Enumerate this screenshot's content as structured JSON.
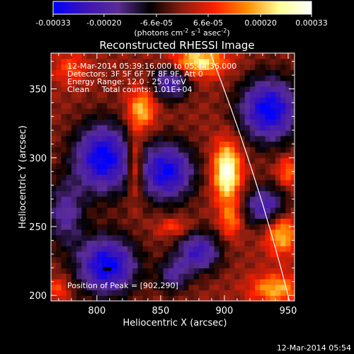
{
  "colorbar": {
    "tick_labels": [
      "-0.00033",
      "-0.00020",
      "-6.6e-05",
      "6.6e-05",
      "0.00020",
      "0.00033"
    ],
    "tick_values": [
      -0.00033,
      -0.0002,
      -6.6e-05,
      6.6e-05,
      0.0002,
      0.00033
    ],
    "range": [
      -0.00033,
      0.00033
    ],
    "units_main": "(photons cm",
    "units_exp1": "-2",
    "units_mid": " s",
    "units_exp2": "-1",
    "units_mid2": " asec",
    "units_exp3": "-2",
    "units_end": ")",
    "colormap": [
      "#0000ff",
      "#3c14b4",
      "#5a2d96",
      "#000000",
      "#8c1e10",
      "#ff1e00",
      "#ff8c00",
      "#ffff96",
      "#ffffff"
    ]
  },
  "chart_data": {
    "type": "heatmap",
    "title": "Reconstructed RHESSI Image",
    "xlabel": "Heliocentric X (arcsec)",
    "ylabel": "Heliocentric Y (arcsec)",
    "xlim": [
      764,
      955
    ],
    "ylim": [
      196,
      376
    ],
    "xticks": [
      800,
      850,
      900,
      950
    ],
    "yticks": [
      200,
      250,
      300,
      350
    ],
    "info_lines": [
      "12-Mar-2014 05:39:16.000 to 05:44:36.000",
      "Detectors: 3F 5F 6F 7F 8F 9F, Att 0",
      "Energy Range: 12.0 - 25.0 keV",
      "Clean     Total counts: 1.01E+04"
    ],
    "peak_label": "Position of Peak = [902,290]",
    "peak_position": [
      902,
      290
    ],
    "negative_blobs": [
      {
        "x": 805,
        "y": 300,
        "rx": 22,
        "ry": 24,
        "strength": 1.0
      },
      {
        "x": 808,
        "y": 222,
        "rx": 22,
        "ry": 20,
        "strength": 1.0
      },
      {
        "x": 855,
        "y": 290,
        "rx": 20,
        "ry": 20,
        "strength": 0.95
      },
      {
        "x": 858,
        "y": 355,
        "rx": 14,
        "ry": 12,
        "strength": 0.7
      },
      {
        "x": 935,
        "y": 335,
        "rx": 22,
        "ry": 22,
        "strength": 1.0
      },
      {
        "x": 932,
        "y": 265,
        "rx": 16,
        "ry": 14,
        "strength": 0.7
      },
      {
        "x": 880,
        "y": 232,
        "rx": 16,
        "ry": 14,
        "strength": 0.75
      },
      {
        "x": 860,
        "y": 215,
        "rx": 12,
        "ry": 12,
        "strength": 0.5
      },
      {
        "x": 775,
        "y": 260,
        "rx": 14,
        "ry": 22,
        "strength": 0.55
      }
    ],
    "positive_blobs": [
      {
        "x": 902,
        "y": 290,
        "rx": 10,
        "ry": 20,
        "strength": 1.0
      },
      {
        "x": 880,
        "y": 370,
        "rx": 20,
        "ry": 10,
        "strength": 0.75
      },
      {
        "x": 835,
        "y": 335,
        "rx": 10,
        "ry": 14,
        "strength": 0.65
      },
      {
        "x": 830,
        "y": 295,
        "rx": 6,
        "ry": 22,
        "strength": 0.6
      },
      {
        "x": 945,
        "y": 245,
        "rx": 12,
        "ry": 14,
        "strength": 0.65
      },
      {
        "x": 940,
        "y": 205,
        "rx": 18,
        "ry": 10,
        "strength": 0.6
      },
      {
        "x": 905,
        "y": 255,
        "rx": 8,
        "ry": 12,
        "strength": 0.45
      },
      {
        "x": 950,
        "y": 290,
        "rx": 8,
        "ry": 10,
        "strength": 0.45
      },
      {
        "x": 780,
        "y": 365,
        "rx": 12,
        "ry": 10,
        "strength": 0.35
      },
      {
        "x": 770,
        "y": 205,
        "rx": 8,
        "ry": 8,
        "strength": 0.35
      },
      {
        "x": 860,
        "y": 250,
        "rx": 12,
        "ry": 6,
        "strength": 0.35
      }
    ],
    "limb": {
      "x_at_top": 889,
      "x_at_bottom": 951
    }
  },
  "timestamp": "12-Mar-2014 05:54"
}
